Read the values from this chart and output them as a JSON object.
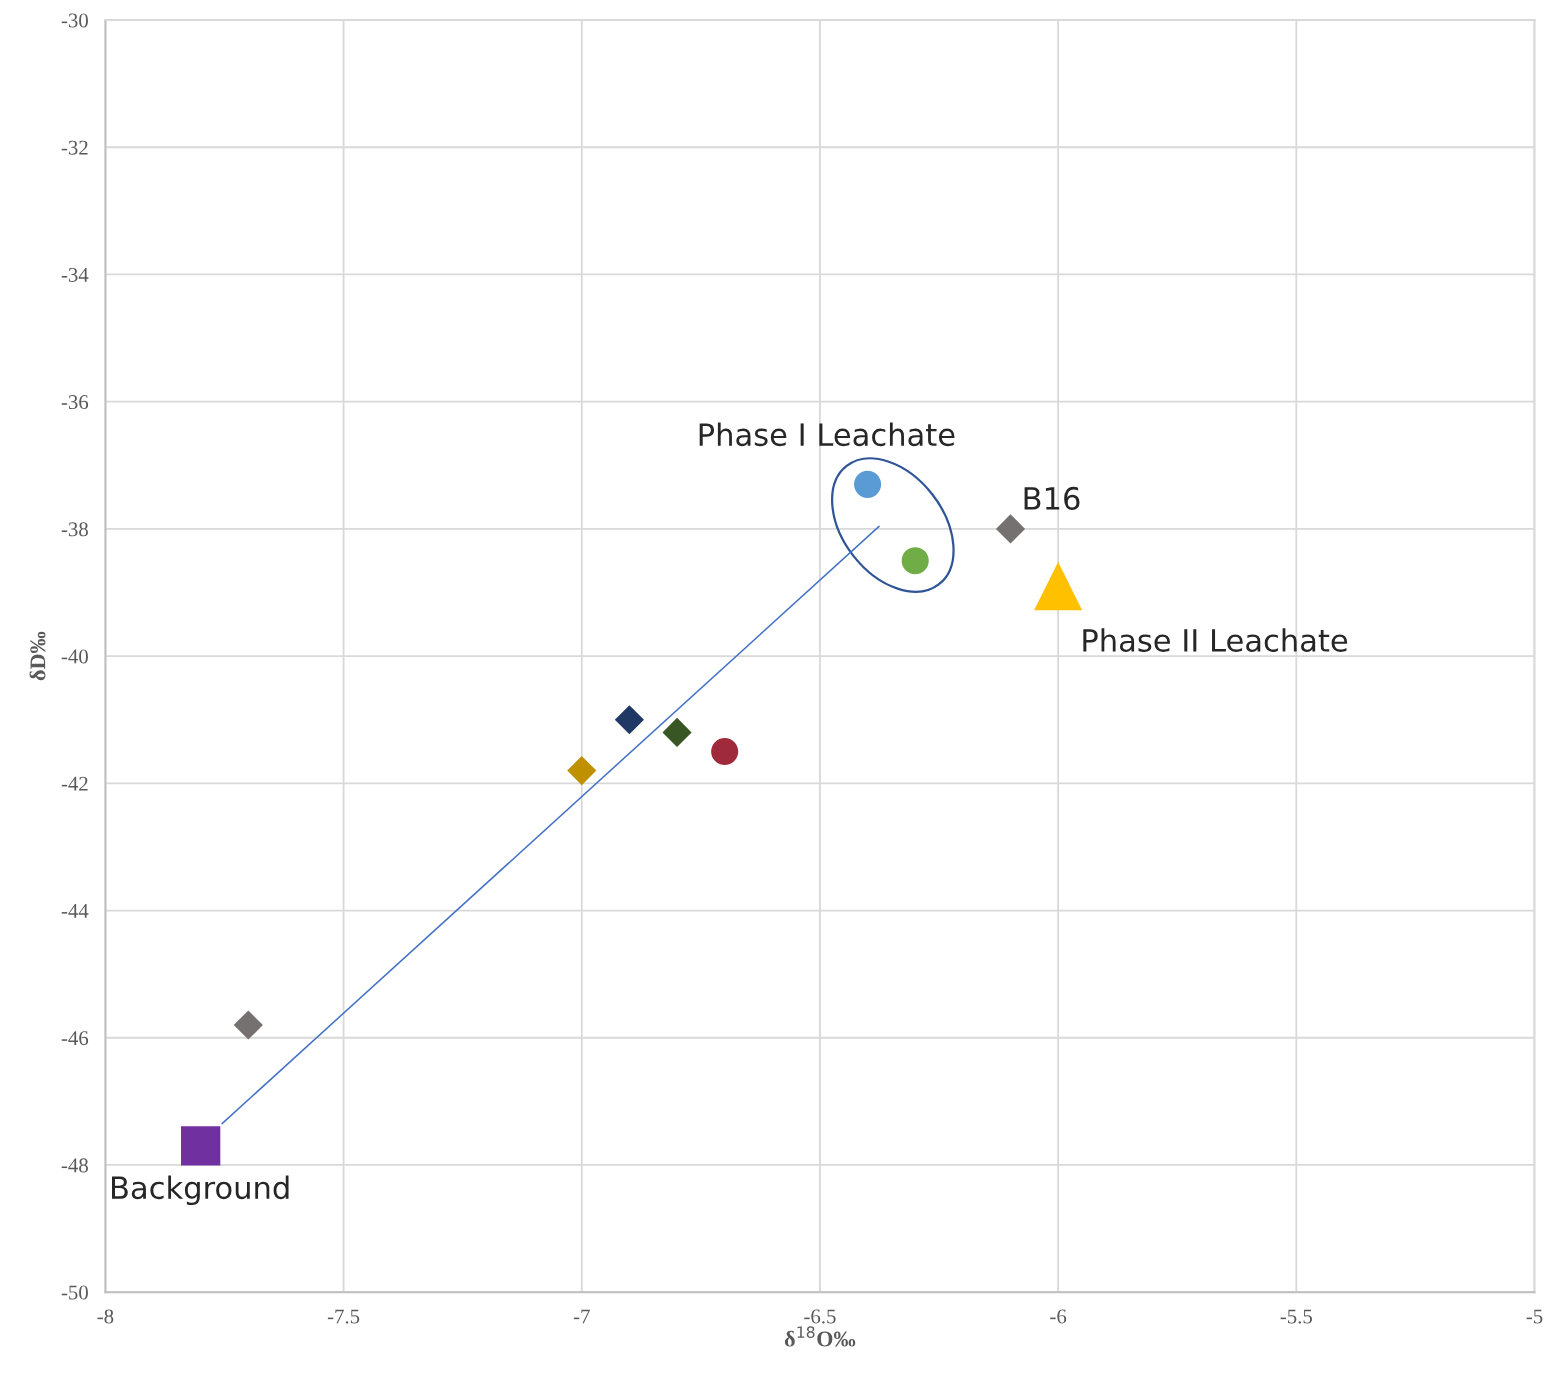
{
  "chart_data": {
    "type": "scatter",
    "xlabel": "δ$^{18}$O‰",
    "ylabel": "δD‰",
    "xlim": [
      -8,
      -5
    ],
    "xticks": [
      -8,
      -7.5,
      -7,
      -6.5,
      -6,
      -5.5,
      -5
    ],
    "ylim": [
      -50,
      -30
    ],
    "yticks": [
      -50,
      -48,
      -46,
      -44,
      -42,
      -40,
      -38,
      -36,
      -34,
      -32,
      -30
    ],
    "grid": true,
    "series": [
      {
        "type": "line",
        "color": "#4472c4",
        "x": [
          -7.755,
          -6.376
        ],
        "values": [
          -47.35,
          -37.96
        ],
        "marker": "none",
        "line_style": "solid"
      },
      {
        "marker": "diamond",
        "x": [
          -7.7,
          -7.0,
          -6.9,
          -6.8,
          -6.1
        ],
        "values": [
          -45.8,
          -41.8,
          -41.0,
          -41.2,
          -38.0
        ],
        "colors": [
          "#767171",
          "#bf9000",
          "#1f3864",
          "#375623",
          "#767171"
        ]
      },
      {
        "marker": "circle",
        "x": [
          -6.7,
          -6.4,
          -6.3
        ],
        "values": [
          -41.5,
          -37.3,
          -38.5
        ],
        "colors": [
          "#9e2a3c",
          "#5b9bd5",
          "#70ad47"
        ]
      },
      {
        "marker": "square",
        "x": [
          -7.8
        ],
        "values": [
          -47.7
        ],
        "colors": [
          "#7030a0"
        ]
      },
      {
        "marker": "triangle",
        "x": [
          -6.0
        ],
        "values": [
          -38.9
        ],
        "colors": [
          "#ffc000"
        ]
      }
    ],
    "annotations": [
      "Phase I Leachate",
      {
        "text": "B16",
        "x": -6.1,
        "y": -38.0
      },
      {
        "text": "Phase II Leachate",
        "x": -6.0,
        "y": -38.9
      },
      {
        "text": "Background",
        "x": -7.8,
        "y": -47.7
      }
    ]
  }
}
